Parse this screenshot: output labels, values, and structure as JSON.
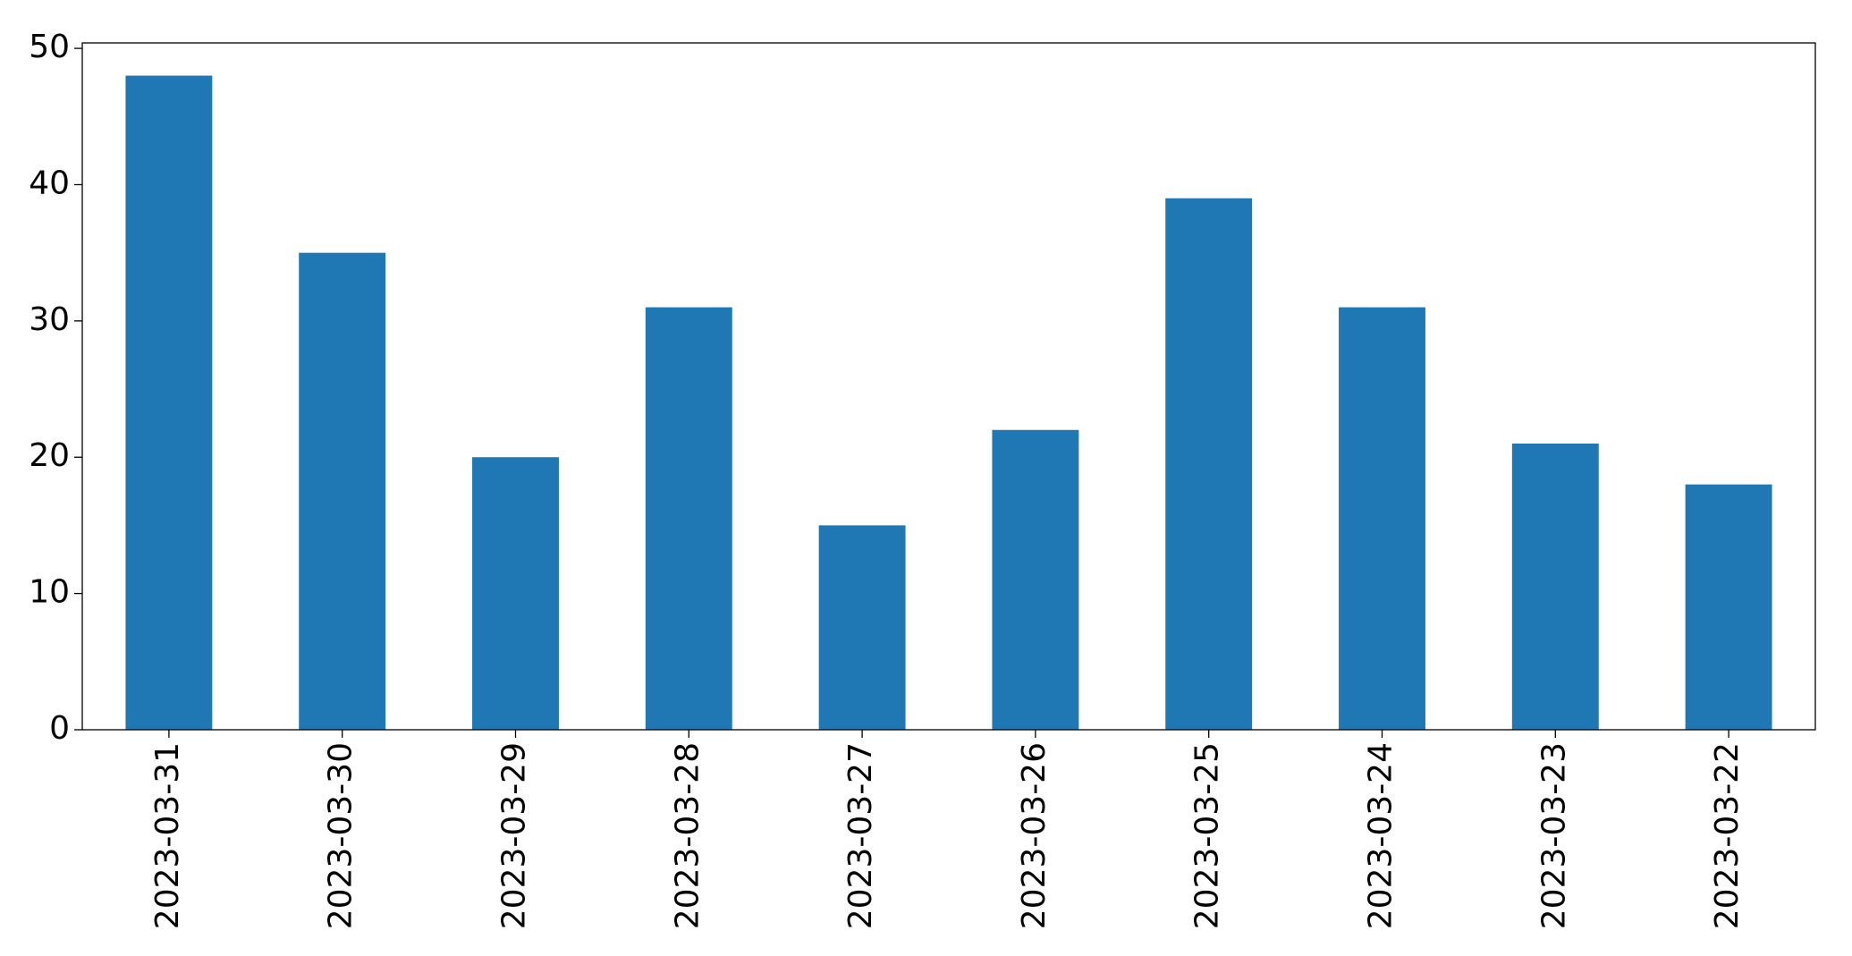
{
  "chart_data": {
    "type": "bar",
    "categories": [
      "2023-03-31",
      "2023-03-30",
      "2023-03-29",
      "2023-03-28",
      "2023-03-27",
      "2023-03-26",
      "2023-03-25",
      "2023-03-24",
      "2023-03-23",
      "2023-03-22"
    ],
    "values": [
      48,
      35,
      20,
      31,
      15,
      22,
      39,
      31,
      21,
      18
    ],
    "color": "#1f77b4",
    "ylim": [
      0,
      50.4
    ],
    "yticks": [
      0,
      10,
      20,
      30,
      40,
      50
    ],
    "grid": false
  }
}
